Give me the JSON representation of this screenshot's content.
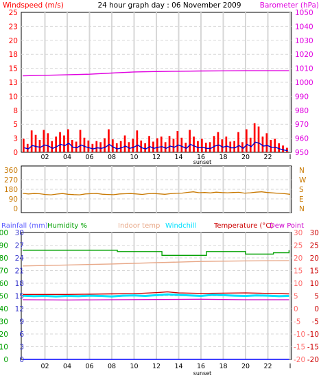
{
  "page": {
    "title": "24 hour graph day : 06 November 2009",
    "sunset_label": "sunset"
  },
  "colors": {
    "panel_bg": "#ffffff",
    "border": "#000000",
    "gridline": "#d7d7d7",
    "wind": "#ff0000",
    "wind_avg": "#0000cc",
    "barometer": "#e000e0",
    "direction": "#c87800",
    "humidity": "#00a000",
    "indoor": "#e8a888",
    "windchill": "#00e0ff",
    "temperature": "#cc0000",
    "dewpoint": "#cc00cc",
    "rainfall": "#6060ff",
    "rain_line": "#0000ff",
    "right_axis_temp": "#ff6666",
    "rain_scale": "#3333cc"
  },
  "chart_data": [
    {
      "type": "line",
      "title": "24 hour graph day : 06 November 2009",
      "xlabel": "",
      "x_ticks": [
        "02",
        "04",
        "06",
        "08",
        "10",
        "12",
        "14",
        "16",
        "18",
        "20",
        "22",
        "I"
      ],
      "left_axis": {
        "label": "Windspeed (m/s)",
        "ticks": [
          "0",
          "3",
          "5",
          "8",
          "10",
          "13",
          "15",
          "18",
          "20",
          "23",
          "25"
        ],
        "ylim": [
          0,
          25
        ]
      },
      "right_axis": {
        "label": "Barometer (hPa)",
        "ticks": [
          "950",
          "960",
          "970",
          "980",
          "990",
          "1000",
          "1010",
          "1020",
          "1030",
          "1040",
          "1050"
        ],
        "ylim": [
          950,
          1050
        ]
      },
      "series": [
        {
          "name": "Windspeed (m/s)",
          "axis": "left",
          "style": "bars",
          "note_values": "estimated peaks per ~30 min (m/s)",
          "values": [
            2.4,
            1.5,
            3.9,
            3.1,
            2.2,
            4.0,
            3.4,
            2.0,
            2.8,
            3.6,
            3.0,
            4.1,
            2.2,
            1.9,
            4.0,
            2.6,
            2.1,
            1.5,
            2.0,
            1.8,
            2.5,
            4.1,
            2.3,
            1.6,
            2.0,
            3.0,
            1.8,
            2.4,
            3.9,
            2.1,
            1.6,
            2.9,
            1.9,
            2.5,
            2.8,
            1.8,
            2.9,
            2.4,
            3.8,
            2.6,
            1.7,
            4.0,
            2.8,
            2.0,
            2.4,
            1.7,
            1.8,
            2.9,
            3.6,
            2.3,
            2.8,
            1.9,
            2.0,
            3.6,
            1.8,
            4.1,
            2.6,
            5.2,
            4.6,
            2.8,
            3.4,
            2.2,
            2.4,
            1.6,
            1.2,
            0.8
          ]
        },
        {
          "name": "Average wind",
          "axis": "left",
          "style": "line",
          "values": [
            0.8,
            0.6,
            1.2,
            1.0,
            0.9,
            1.3,
            1.1,
            0.7,
            1.0,
            1.4,
            1.2,
            1.6,
            0.9,
            0.8,
            1.3,
            1.0,
            0.8,
            0.6,
            0.8,
            0.7,
            0.9,
            1.4,
            0.9,
            0.6,
            0.8,
            1.1,
            0.7,
            0.9,
            1.3,
            0.8,
            0.6,
            1.0,
            0.7,
            0.9,
            1.0,
            0.7,
            1.1,
            0.9,
            1.3,
            1.0,
            0.7,
            1.4,
            1.1,
            0.8,
            0.9,
            0.7,
            0.7,
            1.1,
            1.3,
            0.9,
            1.1,
            0.8,
            0.8,
            1.2,
            0.7,
            1.4,
            1.0,
            1.8,
            1.6,
            1.1,
            1.2,
            0.9,
            0.9,
            0.6,
            0.4,
            0.3
          ]
        },
        {
          "name": "Barometer (hPa)",
          "axis": "right",
          "style": "line",
          "x": [
            0,
            3,
            6,
            8,
            10,
            12,
            14,
            16,
            18,
            20,
            22,
            23.9
          ],
          "values": [
            1004.6,
            1005.2,
            1005.8,
            1006.6,
            1007.4,
            1007.7,
            1007.9,
            1008.1,
            1008.2,
            1008.3,
            1008.3,
            1008.3
          ]
        }
      ]
    },
    {
      "type": "line",
      "left_axis": {
        "ticks": [
          "0",
          "90",
          "180",
          "270",
          "360"
        ],
        "ylim": [
          0,
          360
        ]
      },
      "right_axis": {
        "ticks": [
          "N",
          "W",
          "S",
          "E",
          "N"
        ]
      },
      "x_ticks": [],
      "series": [
        {
          "name": "Wind direction",
          "axis": "left",
          "values": [
            142,
            136,
            140,
            138,
            131,
            128,
            135,
            140,
            133,
            130,
            128,
            136,
            139,
            141,
            134,
            131,
            129,
            136,
            138,
            140,
            136,
            132,
            138,
            141,
            137,
            133,
            139,
            142,
            144,
            151,
            156,
            148,
            150,
            146,
            153,
            149,
            147,
            150,
            152,
            144,
            147,
            153,
            156,
            150,
            146,
            142,
            139,
            133
          ]
        }
      ]
    },
    {
      "type": "line",
      "xlabel": "",
      "x_ticks": [
        "02",
        "04",
        "06",
        "08",
        "10",
        "12",
        "14",
        "16",
        "18",
        "20",
        "22",
        "I"
      ],
      "axis_labels": {
        "rainfall": "Rainfall (mm)",
        "humidity": "Humidity %",
        "indoor": "Indoor temp",
        "windchill": "Windchill",
        "temperature": "Temperature (°C)",
        "dewpoint": "Dew Point"
      },
      "axes": {
        "humidity": {
          "ticks": [
            "0",
            "10",
            "20",
            "30",
            "40",
            "50",
            "60",
            "70",
            "80",
            "90",
            "100"
          ],
          "ylim": [
            0,
            100
          ]
        },
        "rainfall": {
          "ticks": [
            "0",
            "3",
            "6",
            "9",
            "12",
            "15",
            "18",
            "21",
            "24",
            "27",
            "30"
          ],
          "ylim": [
            0,
            30
          ]
        },
        "temperature": {
          "ticks": [
            "-20",
            "-15",
            "-10",
            "-5",
            "0",
            "5",
            "10",
            "15",
            "20",
            "25",
            "30"
          ],
          "ylim": [
            -20,
            30
          ]
        }
      },
      "series": [
        {
          "name": "Humidity %",
          "axis": "humidity",
          "x": [
            0,
            8,
            8.5,
            12.5,
            14.5,
            16.5,
            19,
            20,
            22.5,
            23.9
          ],
          "values": [
            86,
            86,
            85,
            82,
            82,
            85,
            85,
            83,
            84,
            86
          ]
        },
        {
          "name": "Indoor temp",
          "axis": "temperature",
          "x": [
            0,
            4,
            8,
            12,
            16,
            20,
            23.9
          ],
          "values": [
            16.8,
            17.2,
            17.6,
            18.1,
            18.6,
            18.8,
            18.9
          ]
        },
        {
          "name": "Windchill",
          "axis": "temperature",
          "x": [
            0,
            1,
            2,
            3,
            4,
            5,
            6,
            7,
            8,
            9,
            10,
            11,
            12,
            13,
            14,
            15,
            16,
            17,
            18,
            19,
            20,
            21,
            22,
            23,
            23.9
          ],
          "values": [
            5.1,
            4.9,
            5.0,
            4.8,
            5.0,
            4.9,
            5.1,
            5.0,
            4.8,
            5.1,
            5.2,
            5.0,
            5.3,
            5.6,
            5.4,
            5.2,
            5.0,
            5.4,
            5.3,
            5.1,
            5.0,
            5.2,
            5.1,
            4.9,
            5.0
          ]
        },
        {
          "name": "Temperature (°C)",
          "axis": "temperature",
          "x": [
            0,
            2,
            4,
            6,
            8,
            10,
            12,
            13,
            14,
            16,
            18,
            20,
            22,
            23.9
          ],
          "values": [
            5.6,
            5.6,
            5.6,
            5.7,
            5.8,
            5.9,
            6.3,
            6.6,
            6.2,
            6.0,
            6.1,
            6.2,
            6.0,
            5.8
          ]
        },
        {
          "name": "Dew Point",
          "axis": "temperature",
          "x": [
            0,
            4,
            8,
            12,
            16,
            20,
            23.9
          ],
          "values": [
            3.5,
            3.4,
            3.5,
            3.6,
            3.7,
            3.5,
            3.5
          ]
        },
        {
          "name": "Rainfall (mm)",
          "axis": "rainfall",
          "x": [
            0,
            23.9
          ],
          "values": [
            0,
            0
          ]
        }
      ]
    }
  ]
}
